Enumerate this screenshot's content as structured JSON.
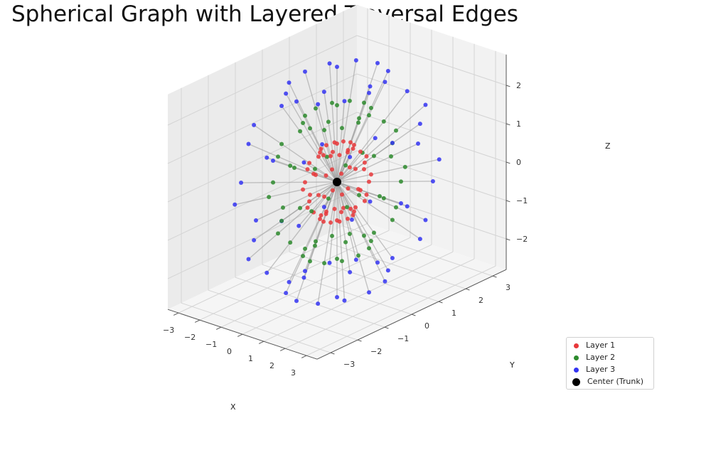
{
  "chart_data": {
    "type": "scatter",
    "subtype": "3d-graph",
    "title": "Spherical Graph with Layered Traversal Edges",
    "xlabel": "X",
    "ylabel": "Y",
    "zlabel": "Z",
    "xlim": [
      -3.5,
      3.5
    ],
    "ylim": [
      -3.5,
      3.5
    ],
    "zlim": [
      -2.8,
      2.8
    ],
    "x_ticks": [
      "−3",
      "−2",
      "−1",
      "0",
      "1",
      "2",
      "3"
    ],
    "y_ticks": [
      "−3",
      "−2",
      "−1",
      "0",
      "1",
      "2",
      "3"
    ],
    "z_ticks": [
      "−2",
      "−1",
      "0",
      "1",
      "2"
    ],
    "grid": true,
    "legend_position": "lower-right",
    "edge_color": "#999999",
    "series": [
      {
        "name": "Layer 1",
        "color": "#e8383b",
        "radius": 1.0
      },
      {
        "name": "Layer 2",
        "color": "#2e8b2e",
        "radius": 2.0
      },
      {
        "name": "Layer 3",
        "color": "#3434f2",
        "radius": 3.0
      },
      {
        "name": "Center (Trunk)",
        "color": "#000000",
        "radius": 0.0,
        "points": [
          [
            0,
            0,
            0
          ]
        ]
      }
    ],
    "node_layout": "spherical grid: polar angles 0,30,60,90,120,150,180 deg; azimuth step 30 deg; one node per (polar, azimuth) per layer",
    "edges": "each node connects to the center trunk (layer 1) or to the node of the previous layer at the same angular position"
  }
}
